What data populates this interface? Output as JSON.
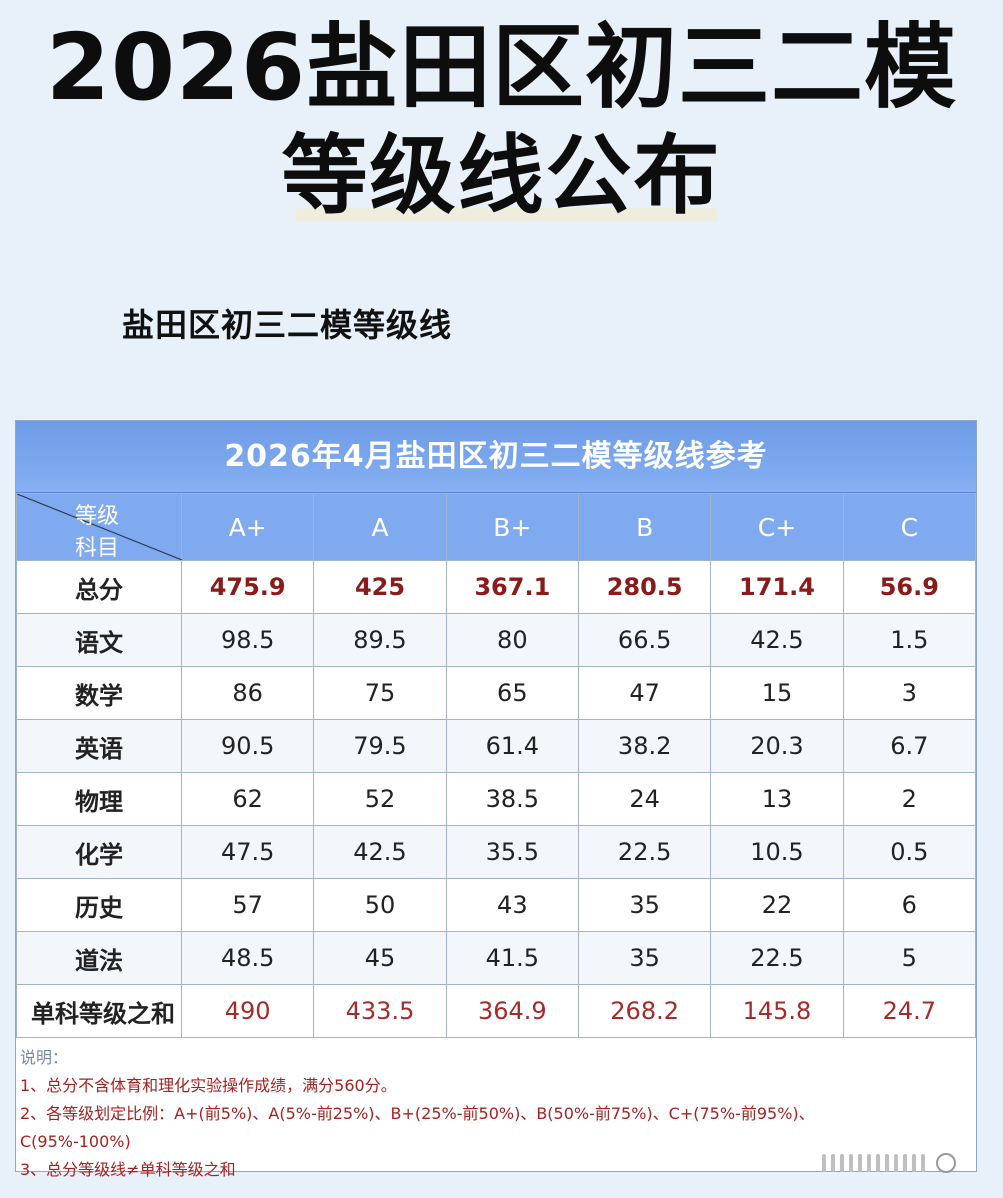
{
  "header": {
    "title_line1": "2026盐田区初三二模",
    "title_line2": "等级线公布",
    "subtitle": "盐田区初三二模等级线"
  },
  "table": {
    "title": "2026年4月盐田区初三二模等级线参考",
    "corner_top": "等级",
    "corner_bottom": "科目",
    "grades": [
      "A+",
      "A",
      "B+",
      "B",
      "C+",
      "C"
    ],
    "rows": [
      {
        "subject": "总分",
        "values": [
          "475.9",
          "425",
          "367.1",
          "280.5",
          "171.4",
          "56.9"
        ]
      },
      {
        "subject": "语文",
        "values": [
          "98.5",
          "89.5",
          "80",
          "66.5",
          "42.5",
          "1.5"
        ]
      },
      {
        "subject": "数学",
        "values": [
          "86",
          "75",
          "65",
          "47",
          "15",
          "3"
        ]
      },
      {
        "subject": "英语",
        "values": [
          "90.5",
          "79.5",
          "61.4",
          "38.2",
          "20.3",
          "6.7"
        ]
      },
      {
        "subject": "物理",
        "values": [
          "62",
          "52",
          "38.5",
          "24",
          "13",
          "2"
        ]
      },
      {
        "subject": "化学",
        "values": [
          "47.5",
          "42.5",
          "35.5",
          "22.5",
          "10.5",
          "0.5"
        ]
      },
      {
        "subject": "历史",
        "values": [
          "57",
          "50",
          "43",
          "35",
          "22",
          "6"
        ]
      },
      {
        "subject": "道法",
        "values": [
          "48.5",
          "45",
          "41.5",
          "35",
          "22.5",
          "5"
        ]
      },
      {
        "subject": "单科等级之和",
        "values": [
          "490",
          "433.5",
          "364.9",
          "268.2",
          "145.8",
          "24.7"
        ]
      }
    ],
    "notes": {
      "head": "说明：",
      "line1": "1、总分不含体育和理化实验操作成绩，满分560分。",
      "line2": "2、各等级划定比例：A+(前5%)、A(5%-前25%)、B+(25%-前50%)、B(50%-前75%)、C+(75%-前95%)、",
      "line3": "C(95%-100%)",
      "line4": "3、总分等级线≠单科等级之和"
    }
  },
  "colors": {
    "header_blue": "#80aaf0",
    "total_red": "#8b1a1a",
    "sum_red": "#a52a2a"
  }
}
